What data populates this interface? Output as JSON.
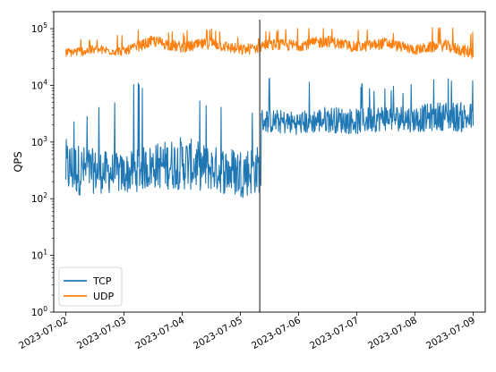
{
  "chart_data": {
    "type": "line",
    "title": "",
    "xlabel": "",
    "ylabel": "QPS",
    "yscale": "log",
    "ylim": [
      1,
      200000
    ],
    "xlim": [
      "2023-07-01T19:00",
      "2023-07-09T05:00"
    ],
    "x_ticks": [
      "2023-07-02",
      "2023-07-03",
      "2023-07-04",
      "2023-07-05",
      "2023-07-06",
      "2023-07-07",
      "2023-07-08",
      "2023-07-09"
    ],
    "y_ticks": [
      {
        "base": "10",
        "exp": "0",
        "value": 1
      },
      {
        "base": "10",
        "exp": "1",
        "value": 10
      },
      {
        "base": "10",
        "exp": "2",
        "value": 100
      },
      {
        "base": "10",
        "exp": "3",
        "value": 1000
      },
      {
        "base": "10",
        "exp": "4",
        "value": 10000
      },
      {
        "base": "10",
        "exp": "5",
        "value": 100000
      }
    ],
    "grid": false,
    "legend_position": "lower-left",
    "annotations": [
      {
        "type": "vline",
        "x": "2023-07-05T08:00",
        "color": "#555555"
      }
    ],
    "series": [
      {
        "name": "TCP",
        "color": "#1f77b4",
        "x": [
          "2023-07-02T00:00",
          "2023-07-02T12:00",
          "2023-07-03T00:00",
          "2023-07-03T12:00",
          "2023-07-04T00:00",
          "2023-07-04T12:00",
          "2023-07-05T00:00",
          "2023-07-05T08:00",
          "2023-07-05T09:00",
          "2023-07-06T00:00",
          "2023-07-06T12:00",
          "2023-07-07T00:00",
          "2023-07-07T12:00",
          "2023-07-08T00:00",
          "2023-07-08T12:00",
          "2023-07-09T00:00"
        ],
        "median": [
          500,
          400,
          350,
          500,
          600,
          450,
          400,
          450,
          2800,
          2500,
          3000,
          2700,
          3200,
          3000,
          3500,
          3200
        ],
        "min": [
          80,
          100,
          100,
          120,
          110,
          110,
          80,
          100,
          1300,
          1200,
          1300,
          1200,
          1400,
          1300,
          1400,
          1200
        ],
        "max": [
          2500,
          4000,
          12000,
          12000,
          6000,
          5000,
          4000,
          4500,
          14000,
          12000,
          11000,
          12000,
          10000,
          11000,
          14000,
          13000
        ]
      },
      {
        "name": "UDP",
        "color": "#ff7f0e",
        "x": [
          "2023-07-02T00:00",
          "2023-07-02T12:00",
          "2023-07-03T00:00",
          "2023-07-03T12:00",
          "2023-07-04T00:00",
          "2023-07-04T12:00",
          "2023-07-05T00:00",
          "2023-07-05T08:00",
          "2023-07-05T09:00",
          "2023-07-06T00:00",
          "2023-07-06T12:00",
          "2023-07-07T00:00",
          "2023-07-07T12:00",
          "2023-07-08T00:00",
          "2023-07-08T12:00",
          "2023-07-09T00:00"
        ],
        "median": [
          40000,
          45000,
          42000,
          65000,
          50000,
          60000,
          45000,
          50000,
          55000,
          55000,
          65000,
          50000,
          60000,
          45000,
          55000,
          40000
        ],
        "min": [
          30000,
          33000,
          32000,
          45000,
          35000,
          42000,
          32000,
          35000,
          38000,
          38000,
          45000,
          36000,
          42000,
          33000,
          38000,
          27000
        ],
        "max": [
          60000,
          75000,
          80000,
          120000,
          90000,
          110000,
          70000,
          80000,
          110000,
          130000,
          110000,
          120000,
          100000,
          95000,
          120000,
          100000
        ]
      }
    ]
  }
}
